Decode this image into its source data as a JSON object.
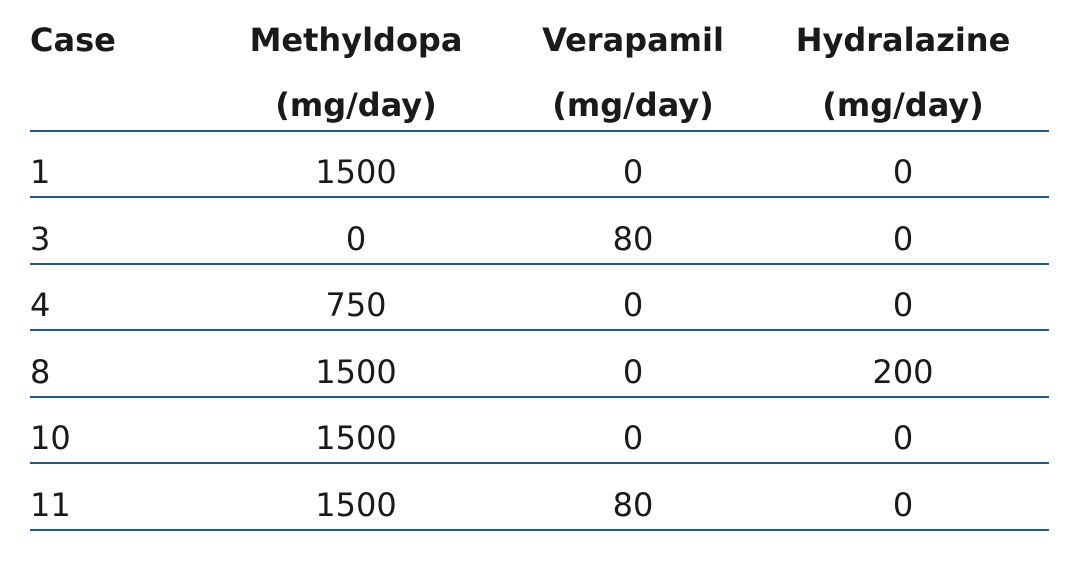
{
  "table": {
    "columns": [
      {
        "name": "Case"
      },
      {
        "name": "Methyldopa",
        "unit": "(mg/day)"
      },
      {
        "name": "Verapamil",
        "unit": "(mg/day)"
      },
      {
        "name": "Hydralazine",
        "unit": "(mg/day)"
      }
    ],
    "rows": [
      [
        1,
        1500,
        0,
        0
      ],
      [
        3,
        0,
        80,
        0
      ],
      [
        4,
        750,
        0,
        0
      ],
      [
        8,
        1500,
        0,
        200
      ],
      [
        10,
        1500,
        0,
        0
      ],
      [
        11,
        1500,
        80,
        0
      ]
    ]
  }
}
